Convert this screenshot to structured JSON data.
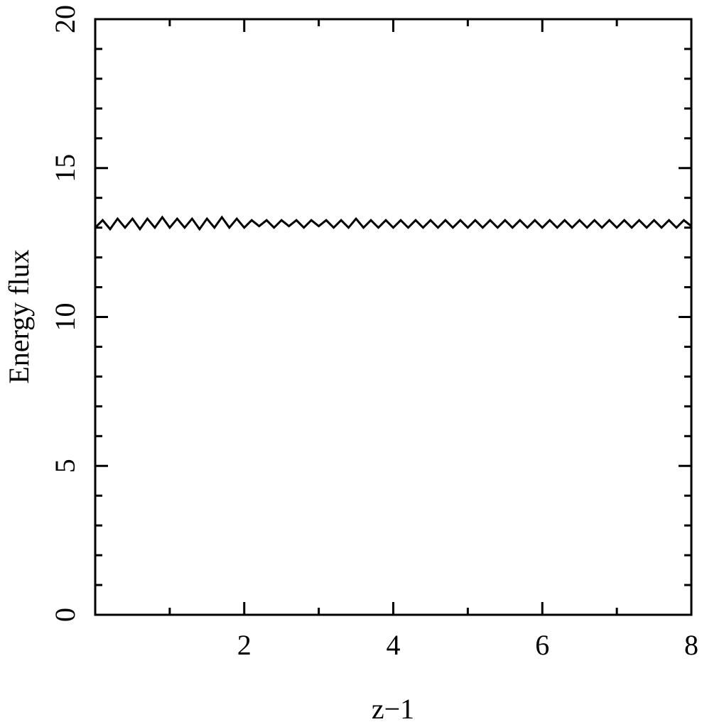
{
  "chart_data": {
    "type": "line",
    "xlabel": "z−1",
    "ylabel": "Energy flux",
    "color": "#000000",
    "xlim": [
      0,
      8
    ],
    "ylim": [
      0,
      20
    ],
    "xticks": [
      2,
      4,
      6,
      8
    ],
    "xminorticks": [
      1,
      3,
      5,
      7
    ],
    "yticks": [
      0,
      5,
      10,
      15,
      20
    ],
    "yminorticks": [
      1,
      2,
      3,
      4,
      6,
      7,
      8,
      9,
      11,
      12,
      13,
      14,
      16,
      17,
      18,
      19
    ],
    "x": [
      0,
      0.1,
      0.2,
      0.3,
      0.4,
      0.5,
      0.6,
      0.7,
      0.8,
      0.9,
      1,
      1.1,
      1.2,
      1.3,
      1.4,
      1.5,
      1.6,
      1.7,
      1.8,
      1.9,
      2,
      2.1,
      2.2,
      2.3,
      2.4,
      2.5,
      2.6,
      2.7,
      2.8,
      2.9,
      3,
      3.1,
      3.2,
      3.3,
      3.4,
      3.5,
      3.6,
      3.7,
      3.8,
      3.9,
      4,
      4.1,
      4.2,
      4.3,
      4.4,
      4.5,
      4.6,
      4.7,
      4.8,
      4.9,
      5,
      5.1,
      5.2,
      5.3,
      5.4,
      5.5,
      5.6,
      5.7,
      5.8,
      5.9,
      6,
      6.1,
      6.2,
      6.3,
      6.4,
      6.5,
      6.6,
      6.7,
      6.8,
      6.9,
      7,
      7.1,
      7.2,
      7.3,
      7.4,
      7.5,
      7.6,
      7.7,
      7.8,
      7.9,
      8
    ],
    "values": [
      13.0,
      13.25,
      12.95,
      13.3,
      13.0,
      13.3,
      12.95,
      13.3,
      13.0,
      13.35,
      13.0,
      13.3,
      13.0,
      13.3,
      12.95,
      13.3,
      13.0,
      13.35,
      13.0,
      13.3,
      13.0,
      13.25,
      13.05,
      13.25,
      13.0,
      13.25,
      13.05,
      13.25,
      13.0,
      13.25,
      13.05,
      13.25,
      13.0,
      13.25,
      13.0,
      13.3,
      13.0,
      13.25,
      13.0,
      13.25,
      13.0,
      13.25,
      13.0,
      13.25,
      13.0,
      13.25,
      13.0,
      13.25,
      13.0,
      13.25,
      13.0,
      13.25,
      13.0,
      13.25,
      13.0,
      13.25,
      13.0,
      13.25,
      13.0,
      13.25,
      13.0,
      13.25,
      13.0,
      13.25,
      13.0,
      13.25,
      13.0,
      13.25,
      13.0,
      13.25,
      13.0,
      13.25,
      13.0,
      13.25,
      13.0,
      13.25,
      13.0,
      13.25,
      13.0,
      13.25,
      13.05
    ]
  }
}
